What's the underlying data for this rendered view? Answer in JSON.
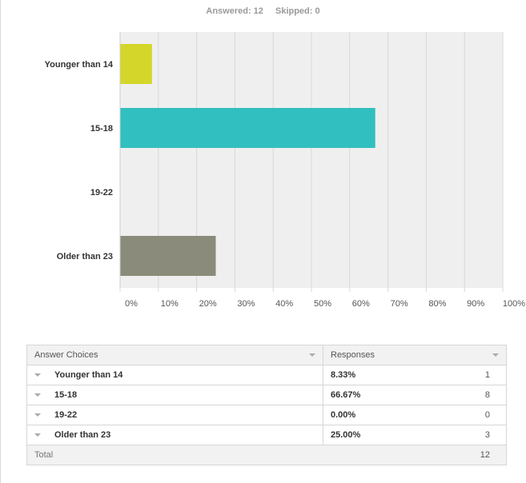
{
  "summary": {
    "answered": "Answered: 12",
    "skipped": "Skipped: 0"
  },
  "chart_data": {
    "type": "bar",
    "orientation": "horizontal",
    "categories": [
      "Younger than 14",
      "15-18",
      "19-22",
      "Older than 23"
    ],
    "values": [
      8.33,
      66.67,
      0,
      25.0
    ],
    "colors": [
      "#d4d629",
      "#31bfbf",
      "#9b59b6",
      "#8a8b7a"
    ],
    "xlim": [
      0,
      100
    ],
    "xticks": [
      "0%",
      "10%",
      "20%",
      "30%",
      "40%",
      "50%",
      "60%",
      "70%",
      "80%",
      "90%",
      "100%"
    ],
    "grid": true
  },
  "table": {
    "headers": {
      "choices": "Answer Choices",
      "responses": "Responses"
    },
    "rows": [
      {
        "label": "Younger than 14",
        "percent": "8.33%",
        "count": "1"
      },
      {
        "label": "15-18",
        "percent": "66.67%",
        "count": "8"
      },
      {
        "label": "19-22",
        "percent": "0.00%",
        "count": "0"
      },
      {
        "label": "Older than 23",
        "percent": "25.00%",
        "count": "3"
      }
    ],
    "total": {
      "label": "Total",
      "count": "12"
    }
  }
}
